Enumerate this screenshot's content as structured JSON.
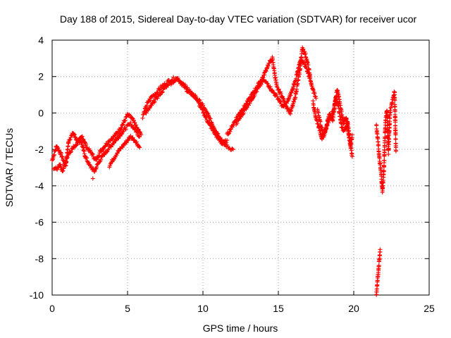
{
  "chart_data": {
    "type": "scatter",
    "title": "Day 188 of 2015, Sidereal Day-to-day VTEC variation (SDTVAR) for receiver ucor",
    "xlabel": "GPS time / hours",
    "ylabel": "SDTVAR / TECUs",
    "xlim": [
      0,
      25
    ],
    "ylim": [
      -10,
      4
    ],
    "xticks": [
      "0",
      "5",
      "10",
      "15",
      "20",
      "25"
    ],
    "yticks": [
      "4",
      "2",
      "0",
      "-2",
      "-4",
      "-6",
      "-8",
      "-10"
    ],
    "grid": true,
    "marker": "plus",
    "series_color": "#ff0000",
    "series": [
      {
        "name": "SDTVAR",
        "segments": [
          {
            "x": [
              0,
              0.3,
              0.6,
              0.9,
              1.1,
              1.4,
              1.7,
              2.0,
              2.3,
              2.6,
              2.9,
              3.2,
              3.5,
              3.8,
              4.1,
              4.4,
              4.7,
              5.0,
              5.3,
              5.6,
              5.9
            ],
            "y": [
              -2.6,
              -1.8,
              -2.3,
              -2.9,
              -1.5,
              -1.1,
              -1.6,
              -1.3,
              -1.9,
              -2.2,
              -2.6,
              -2.1,
              -1.8,
              -1.5,
              -1.3,
              -1.0,
              -0.6,
              -0.1,
              -0.3,
              -0.8,
              -1.2
            ]
          },
          {
            "x": [
              0.1,
              0.3,
              0.5,
              0.7,
              0.9,
              1.1,
              1.3,
              1.6,
              1.9,
              2.2,
              2.5,
              2.8,
              3.1,
              3.4,
              3.7,
              4.0,
              4.3,
              4.6,
              4.9,
              5.2,
              5.5,
              5.8
            ],
            "y": [
              -3.0,
              -3.1,
              -2.8,
              -3.2,
              -2.6,
              -2.2,
              -2.0,
              -1.7,
              -1.5,
              -2.4,
              -2.9,
              -3.2,
              -2.7,
              -2.3,
              -2.0,
              -1.7,
              -1.4,
              -1.1,
              -0.8,
              -0.6,
              -0.9,
              -1.3
            ]
          },
          {
            "x": [
              2.7
            ],
            "y": [
              -3.6
            ]
          },
          {
            "x": [
              3.8,
              4.0,
              4.3,
              4.6,
              4.9,
              5.2,
              5.5,
              5.8
            ],
            "y": [
              -2.9,
              -2.6,
              -2.2,
              -1.9,
              -1.6,
              -1.3,
              -1.5,
              -1.9
            ]
          },
          {
            "x": [
              6.0,
              6.3,
              6.6,
              6.9,
              7.2,
              7.5,
              7.8,
              8.1,
              8.4,
              8.7,
              9.0,
              9.3,
              9.6,
              9.9,
              10.2,
              10.5,
              10.8,
              11.1,
              11.4,
              11.7,
              12.0
            ],
            "y": [
              -0.2,
              0.5,
              0.9,
              1.1,
              1.4,
              1.6,
              1.8,
              1.9,
              1.8,
              1.5,
              1.2,
              1.0,
              0.8,
              0.5,
              0.1,
              -0.4,
              -0.9,
              -1.3,
              -1.7,
              -1.9,
              -2.0
            ]
          },
          {
            "x": [
              6.2,
              6.5,
              6.8,
              7.1,
              7.4,
              7.7,
              8.0,
              8.3,
              8.6,
              8.9,
              9.2,
              9.5,
              9.8,
              10.1,
              10.4,
              10.7,
              11.0,
              11.3,
              11.6
            ],
            "y": [
              0.0,
              0.3,
              0.7,
              1.0,
              1.3,
              1.6,
              1.7,
              1.9,
              1.7,
              1.4,
              1.1,
              0.9,
              0.4,
              -0.1,
              -0.6,
              -1.0,
              -1.4,
              -1.7,
              -1.5
            ]
          },
          {
            "x": [
              11.6,
              11.9,
              12.2,
              12.5,
              12.8,
              13.1,
              13.4,
              13.7,
              14.0,
              14.3,
              14.6,
              14.9,
              15.2,
              15.5,
              15.8,
              16.1,
              16.4,
              16.6,
              16.8,
              17.0,
              17.2,
              17.5
            ],
            "y": [
              -1.2,
              -0.8,
              -0.3,
              0.1,
              0.4,
              0.8,
              1.2,
              1.6,
              2.0,
              2.6,
              3.0,
              1.4,
              1.0,
              0.4,
              0.0,
              0.8,
              2.2,
              3.6,
              3.2,
              2.5,
              1.5,
              0.8
            ]
          },
          {
            "x": [
              12.2,
              12.5,
              12.8,
              13.1,
              13.4,
              13.7,
              14.0,
              14.3,
              14.6,
              15.0,
              15.3,
              15.6,
              15.9,
              16.2,
              16.5,
              16.8,
              17.1
            ],
            "y": [
              -0.6,
              -0.2,
              0.2,
              0.6,
              1.0,
              1.4,
              1.8,
              1.6,
              1.2,
              0.8,
              0.3,
              0.6,
              1.2,
              2.0,
              3.0,
              2.6,
              1.9
            ]
          },
          {
            "x": [
              17.3,
              17.5,
              17.7,
              17.9,
              18.1,
              18.3,
              18.5,
              18.7,
              18.9,
              19.1,
              19.3,
              19.5,
              19.7,
              19.9
            ],
            "y": [
              0.6,
              -0.3,
              -0.8,
              -1.4,
              -1.0,
              -0.5,
              -0.1,
              0.2,
              1.3,
              0.5,
              -0.6,
              -0.2,
              -1.4,
              -2.4
            ]
          },
          {
            "x": [
              17.6,
              17.8,
              18.0,
              18.2,
              18.4,
              18.6,
              18.8,
              19.0,
              19.2,
              19.4,
              19.6,
              19.8,
              19.9
            ],
            "y": [
              0.2,
              -0.6,
              -1.3,
              -0.7,
              0.0,
              -0.4,
              0.9,
              0.3,
              -0.8,
              -1.0,
              -0.5,
              -1.8,
              -1.2
            ]
          },
          {
            "x": [
              21.5,
              21.6,
              21.7,
              21.8,
              21.9,
              22.0,
              22.1,
              22.2,
              22.3,
              22.4,
              22.5,
              22.6,
              22.7,
              22.8
            ],
            "y": [
              -0.7,
              -1.5,
              -2.5,
              -3.2,
              -4.3,
              -3.1,
              -0.5,
              0.2,
              -2.2,
              0.0,
              0.4,
              0.8,
              1.2,
              -2.1
            ]
          },
          {
            "x": [
              21.5,
              21.55,
              21.6,
              21.65,
              21.7,
              21.75
            ],
            "y": [
              -10.0,
              -9.5,
              -9.0,
              -8.5,
              -8.0,
              -7.5
            ]
          }
        ]
      }
    ]
  }
}
